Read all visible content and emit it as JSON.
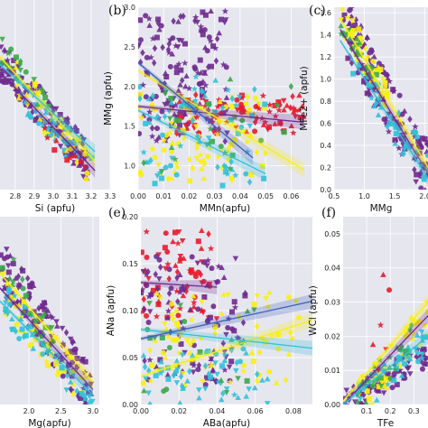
{
  "colors": {
    "plot_background": "#e6e6ef",
    "grid": "#ffffff",
    "series": [
      "#e8192c",
      "#f9ef0f",
      "#6e2a8e",
      "#3aa84a",
      "#32c0d8",
      "#3a5fb8",
      "#e79a2e"
    ]
  },
  "chart_data": [
    {
      "id": "a",
      "type": "scatter",
      "panel_label": "",
      "xlabel": "Si (apfu)",
      "ylabel": "",
      "x_ticks": [
        "2.8",
        "2.9",
        "3.0",
        "3.1",
        "3.2",
        "3.3"
      ],
      "y_ticks": [],
      "xlim": [
        2.72,
        3.3
      ],
      "ylim": [
        0,
        1
      ],
      "trend_lines": [
        [
          [
            2.72,
            0.62
          ],
          [
            3.22,
            0.1
          ]
        ],
        [
          [
            2.72,
            0.7
          ],
          [
            3.22,
            0.15
          ]
        ],
        [
          [
            2.72,
            0.66
          ],
          [
            3.22,
            0.2
          ]
        ]
      ],
      "clusters": [
        {
          "color": 2,
          "x": [
            2.72,
            3.18
          ],
          "y": [
            0.15,
            0.68
          ],
          "n": 150,
          "slope": -1
        },
        {
          "color": 1,
          "x": [
            2.8,
            3.2
          ],
          "y": [
            0.1,
            0.6
          ],
          "n": 45,
          "slope": -1
        },
        {
          "color": 4,
          "x": [
            2.8,
            3.22
          ],
          "y": [
            0.1,
            0.55
          ],
          "n": 40,
          "slope": -1
        },
        {
          "color": 3,
          "x": [
            2.72,
            3.0
          ],
          "y": [
            0.4,
            0.75
          ],
          "n": 20,
          "slope": -1
        },
        {
          "color": 0,
          "x": [
            2.95,
            3.18
          ],
          "y": [
            0.08,
            0.3
          ],
          "n": 10,
          "slope": -1
        }
      ]
    },
    {
      "id": "b",
      "type": "scatter",
      "panel_label": "(b)",
      "xlabel": "MMn(apfu)",
      "ylabel": "MMg (apfu)",
      "x_ticks": [
        "0.00",
        "0.01",
        "0.02",
        "0.03",
        "0.04",
        "0.05",
        "0.06"
      ],
      "y_ticks": [
        "1.0",
        "1.5",
        "2.0",
        "2.5",
        "3.0"
      ],
      "xlim": [
        0,
        0.068
      ],
      "ylim": [
        0.7,
        3.0
      ],
      "trend_lines": [
        [
          [
            0,
            1.75
          ],
          [
            0.065,
            1.55
          ]
        ],
        [
          [
            0,
            2.2
          ],
          [
            0.065,
            0.95
          ]
        ],
        [
          [
            0,
            1.7
          ],
          [
            0.05,
            0.9
          ]
        ],
        [
          [
            0,
            2.3
          ],
          [
            0.045,
            1.1
          ]
        ]
      ],
      "clusters": [
        {
          "color": 2,
          "x": [
            0,
            0.035
          ],
          "y": [
            1.3,
            2.95
          ],
          "n": 160,
          "slope": 0
        },
        {
          "color": 0,
          "x": [
            0.015,
            0.065
          ],
          "y": [
            1.4,
            1.9
          ],
          "n": 90,
          "slope": 0
        },
        {
          "color": 1,
          "x": [
            0,
            0.05
          ],
          "y": [
            0.8,
            1.9
          ],
          "n": 90,
          "slope": 0
        },
        {
          "color": 4,
          "x": [
            0,
            0.05
          ],
          "y": [
            0.75,
            2.2
          ],
          "n": 70,
          "slope": 0
        },
        {
          "color": 3,
          "x": [
            0,
            0.06
          ],
          "y": [
            0.9,
            2.1
          ],
          "n": 25,
          "slope": 0
        }
      ]
    },
    {
      "id": "c",
      "type": "scatter",
      "panel_label": "(c)",
      "xlabel": "MMg",
      "ylabel": "MFe2+ (apfu)",
      "x_ticks": [
        "0.5",
        "1.0",
        "1.5",
        "2.0"
      ],
      "y_ticks": [
        "0.0",
        "0.2",
        "0.4",
        "0.6",
        "0.8",
        "1.0",
        "1.2",
        "1.4",
        "1.6"
      ],
      "xlim": [
        0.5,
        2.05
      ],
      "ylim": [
        0,
        1.65
      ],
      "trend_lines": [
        [
          [
            0.6,
            1.45
          ],
          [
            2.05,
            0.15
          ]
        ],
        [
          [
            0.6,
            1.55
          ],
          [
            2.05,
            0.2
          ]
        ],
        [
          [
            0.6,
            1.35
          ],
          [
            2.05,
            0.1
          ]
        ]
      ],
      "clusters": [
        {
          "color": 2,
          "x": [
            0.65,
            2.05
          ],
          "y": [
            0.15,
            1.5
          ],
          "n": 150,
          "slope": -1
        },
        {
          "color": 1,
          "x": [
            0.6,
            1.4
          ],
          "y": [
            0.8,
            1.6
          ],
          "n": 60,
          "slope": -1
        },
        {
          "color": 4,
          "x": [
            0.8,
            2.05
          ],
          "y": [
            0.2,
            1.1
          ],
          "n": 40,
          "slope": -1
        },
        {
          "color": 3,
          "x": [
            0.6,
            1.2
          ],
          "y": [
            1.0,
            1.5
          ],
          "n": 20,
          "slope": -1
        }
      ]
    },
    {
      "id": "d",
      "type": "scatter",
      "panel_label": "",
      "xlabel": "Mg(apfu)",
      "ylabel": "",
      "x_ticks": [
        "2.0",
        "2.5",
        "3.0"
      ],
      "y_ticks": [],
      "xlim": [
        1.55,
        3.1
      ],
      "ylim": [
        0,
        1
      ],
      "trend_lines": [
        [
          [
            1.55,
            0.62
          ],
          [
            3.0,
            0.08
          ]
        ],
        [
          [
            1.55,
            0.7
          ],
          [
            3.0,
            0.12
          ]
        ],
        [
          [
            1.55,
            0.55
          ],
          [
            3.0,
            0.05
          ]
        ]
      ],
      "clusters": [
        {
          "color": 2,
          "x": [
            1.55,
            3.0
          ],
          "y": [
            0.05,
            0.75
          ],
          "n": 140,
          "slope": -1
        },
        {
          "color": 1,
          "x": [
            1.6,
            2.9
          ],
          "y": [
            0.05,
            0.6
          ],
          "n": 50,
          "slope": -1
        },
        {
          "color": 4,
          "x": [
            1.6,
            3.0
          ],
          "y": [
            0.02,
            0.55
          ],
          "n": 40,
          "slope": -1
        },
        {
          "color": 3,
          "x": [
            1.55,
            2.4
          ],
          "y": [
            0.3,
            0.8
          ],
          "n": 25,
          "slope": -1
        }
      ]
    },
    {
      "id": "e",
      "type": "scatter",
      "panel_label": "(e)",
      "xlabel": "ABa(apfu)",
      "ylabel": "ANa (apfu)",
      "x_ticks": [
        "0.00",
        "0.02",
        "0.04",
        "0.06",
        "0.08"
      ],
      "y_ticks": [
        "0.00",
        "0.05",
        "0.10",
        "0.15",
        "0.20"
      ],
      "xlim": [
        0,
        0.09
      ],
      "ylim": [
        0,
        0.2
      ],
      "trend_lines": [
        [
          [
            0,
            0.13
          ],
          [
            0.04,
            0.125
          ]
        ],
        [
          [
            0,
            0.03
          ],
          [
            0.09,
            0.09
          ]
        ],
        [
          [
            0,
            0.08
          ],
          [
            0.09,
            0.06
          ]
        ],
        [
          [
            0,
            0.07
          ],
          [
            0.09,
            0.11
          ]
        ]
      ],
      "clusters": [
        {
          "color": 0,
          "x": [
            0,
            0.04
          ],
          "y": [
            0.09,
            0.19
          ],
          "n": 70,
          "slope": 0
        },
        {
          "color": 2,
          "x": [
            0,
            0.055
          ],
          "y": [
            0.02,
            0.16
          ],
          "n": 110,
          "slope": 0
        },
        {
          "color": 1,
          "x": [
            0,
            0.085
          ],
          "y": [
            0.02,
            0.12
          ],
          "n": 80,
          "slope": 0
        },
        {
          "color": 4,
          "x": [
            0,
            0.07
          ],
          "y": [
            0.0,
            0.06
          ],
          "n": 60,
          "slope": 0
        },
        {
          "color": 3,
          "x": [
            0,
            0.06
          ],
          "y": [
            0.01,
            0.12
          ],
          "n": 20,
          "slope": 0
        }
      ]
    },
    {
      "id": "f",
      "type": "scatter",
      "panel_label": "(f)",
      "xlabel": "TFe",
      "ylabel": "WCl (apfu)",
      "x_ticks": [
        "0.1",
        "0.2",
        "0.3"
      ],
      "y_ticks": [
        "0.00",
        "0.01",
        "0.02",
        "0.03",
        "0.04",
        "0.05"
      ],
      "xlim": [
        0.0,
        0.36
      ],
      "ylim": [
        0,
        0.055
      ],
      "trend_lines": [
        [
          [
            0.0,
            0.0
          ],
          [
            0.36,
            0.026
          ]
        ],
        [
          [
            0.0,
            0.001
          ],
          [
            0.36,
            0.03
          ]
        ],
        [
          [
            0.0,
            0.0
          ],
          [
            0.36,
            0.02
          ]
        ]
      ],
      "clusters": [
        {
          "color": 2,
          "x": [
            0.0,
            0.36
          ],
          "y": [
            0.0,
            0.015
          ],
          "n": 90,
          "slope": 1
        },
        {
          "color": 1,
          "x": [
            0.05,
            0.36
          ],
          "y": [
            0.0,
            0.025
          ],
          "n": 50,
          "slope": 1
        },
        {
          "color": 4,
          "x": [
            0.05,
            0.36
          ],
          "y": [
            0.0,
            0.02
          ],
          "n": 40,
          "slope": 1
        },
        {
          "color": 3,
          "x": [
            0.05,
            0.3
          ],
          "y": [
            0.0,
            0.02
          ],
          "n": 25,
          "slope": 1
        },
        {
          "color": 0,
          "x": [
            0.1,
            0.2
          ],
          "y": [
            0.01,
            0.04
          ],
          "n": 6,
          "slope": 0
        }
      ]
    }
  ]
}
